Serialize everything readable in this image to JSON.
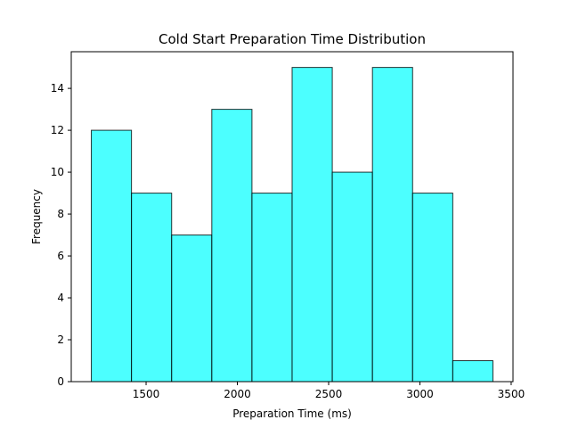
{
  "chart_data": {
    "type": "bar",
    "title": "Cold Start Preparation Time Distribution",
    "xlabel": "Preparation Time (ms)",
    "ylabel": "Frequency",
    "bin_edges": [
      1200,
      1420,
      1640,
      1860,
      2080,
      2300,
      2520,
      2740,
      2960,
      3180,
      3400
    ],
    "values": [
      12,
      9,
      7,
      13,
      9,
      15,
      10,
      15,
      9,
      1
    ],
    "xlim": [
      1090,
      3510
    ],
    "ylim": [
      0,
      15.75
    ],
    "xticks": [
      1500,
      2000,
      2500,
      3000,
      3500
    ],
    "yticks": [
      0,
      2,
      4,
      6,
      8,
      10,
      12,
      14
    ],
    "bar_color": "#00FFFF",
    "bar_alpha": 0.7,
    "edge_color": "#000000",
    "grid": false
  }
}
